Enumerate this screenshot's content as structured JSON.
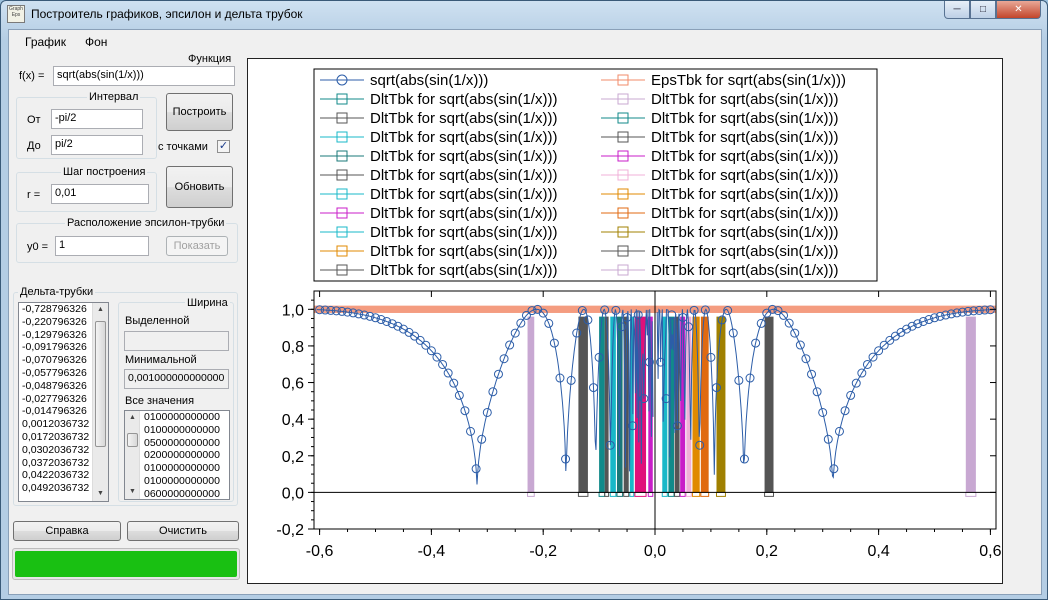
{
  "window": {
    "title": "Построитель графиков, эпсилон и дельта трубок",
    "icon_text": "Graph\nEps"
  },
  "menu": [
    "График",
    "Фон"
  ],
  "function": {
    "group_label": "Функция",
    "label": "f(x) =",
    "value": "sqrt(abs(sin(1/x)))"
  },
  "interval": {
    "group_label": "Интервал",
    "from_label": "От",
    "from_value": "-pi/2",
    "to_label": "До",
    "to_value": "pi/2"
  },
  "build_button": "Построить",
  "with_points": {
    "label": "с точками",
    "checked": true
  },
  "step": {
    "group_label": "Шаг построения",
    "label": "r =",
    "value": "0,01"
  },
  "update_button": "Обновить",
  "epsilon": {
    "group_label": "Расположение эпсилон-трубки",
    "label": "y0 =",
    "value": "1",
    "show_button": "Показать"
  },
  "delta": {
    "group_label": "Дельта-трубки",
    "items": [
      "-0,728796326",
      "-0,220796326",
      "-0,129796326",
      "-0,091796326",
      "-0,070796326",
      "-0,057796326",
      "-0,048796326",
      "-0,027796326",
      "-0,014796326",
      "0,0012036732",
      "0,0172036732",
      "0,0302036732",
      "0,0372036732",
      "0,0422036732",
      "0,0492036732"
    ]
  },
  "width": {
    "group_label": "Ширина",
    "selected_label": "Выделенной",
    "selected_value": "",
    "min_label": "Минимальной",
    "min_value": "0,001000000000000",
    "all_label": "Все значения",
    "all_values": [
      "0100000000000",
      "0100000000000",
      "0500000000000",
      "0200000000000",
      "0100000000000",
      "0100000000000",
      "0600000000000"
    ]
  },
  "help_button": "Справка",
  "clear_button": "Очистить",
  "progress": {
    "value_percent": 100,
    "color": "#19c012"
  },
  "chart_data": {
    "type": "line",
    "title": "",
    "xlabel": "",
    "ylabel": "",
    "xlim": [
      -0.61,
      0.61
    ],
    "ylim": [
      -0.2,
      1.1
    ],
    "xticks": [
      "-0,6",
      "-0,4",
      "-0,2",
      "0,0",
      "0,2",
      "0,4",
      "0,6"
    ],
    "yticks": [
      "-0,2",
      "0,0",
      "0,2",
      "0,4",
      "0,6",
      "0,8",
      "1,0"
    ],
    "legend_position": "top",
    "legend_left": [
      {
        "name": "sqrt(abs(sin(1/x)))",
        "color": "#2c5da8",
        "marker": "circle"
      },
      {
        "name": "DltTbk for sqrt(abs(sin(1/x)))",
        "color": "#118a8a",
        "marker": "square"
      },
      {
        "name": "DltTbk for sqrt(abs(sin(1/x)))",
        "color": "#555555",
        "marker": "square"
      },
      {
        "name": "DltTbk for sqrt(abs(sin(1/x)))",
        "color": "#19b8c8",
        "marker": "square"
      },
      {
        "name": "DltTbk for sqrt(abs(sin(1/x)))",
        "color": "#1a7878",
        "marker": "square"
      },
      {
        "name": "DltTbk for sqrt(abs(sin(1/x)))",
        "color": "#555555",
        "marker": "square"
      },
      {
        "name": "DltTbk for sqrt(abs(sin(1/x)))",
        "color": "#19b8c8",
        "marker": "square"
      },
      {
        "name": "DltTbk for sqrt(abs(sin(1/x)))",
        "color": "#c81ec8",
        "marker": "square"
      },
      {
        "name": "DltTbk for sqrt(abs(sin(1/x)))",
        "color": "#19b8c8",
        "marker": "square"
      },
      {
        "name": "DltTbk for sqrt(abs(sin(1/x)))",
        "color": "#e08a00",
        "marker": "square"
      },
      {
        "name": "DltTbk for sqrt(abs(sin(1/x)))",
        "color": "#555555",
        "marker": "square"
      }
    ],
    "legend_right": [
      {
        "name": "EpsTbk for sqrt(abs(sin(1/x)))",
        "color": "#f28b6a",
        "marker": "square"
      },
      {
        "name": "DltTbk for sqrt(abs(sin(1/x)))",
        "color": "#c8a8d2",
        "marker": "square"
      },
      {
        "name": "DltTbk for sqrt(abs(sin(1/x)))",
        "color": "#118a8a",
        "marker": "square"
      },
      {
        "name": "DltTbk for sqrt(abs(sin(1/x)))",
        "color": "#555555",
        "marker": "square"
      },
      {
        "name": "DltTbk for sqrt(abs(sin(1/x)))",
        "color": "#c81ec8",
        "marker": "square"
      },
      {
        "name": "DltTbk for sqrt(abs(sin(1/x)))",
        "color": "#f0b0d8",
        "marker": "square"
      },
      {
        "name": "DltTbk for sqrt(abs(sin(1/x)))",
        "color": "#e08a00",
        "marker": "square"
      },
      {
        "name": "DltTbk for sqrt(abs(sin(1/x)))",
        "color": "#e06a10",
        "marker": "square"
      },
      {
        "name": "DltTbk for sqrt(abs(sin(1/x)))",
        "color": "#a08000",
        "marker": "square"
      },
      {
        "name": "DltTbk for sqrt(abs(sin(1/x)))",
        "color": "#555555",
        "marker": "square"
      },
      {
        "name": "DltTbk for sqrt(abs(sin(1/x)))",
        "color": "#c8a8d2",
        "marker": "square"
      }
    ],
    "epsilon_band": {
      "y0": 0.98,
      "y1": 1.02,
      "color": "#f28b6a"
    },
    "delta_bars": [
      {
        "x0": -0.228,
        "x1": -0.216,
        "top": 0.96,
        "color": "#c8a8d2"
      },
      {
        "x0": -0.137,
        "x1": -0.12,
        "top": 0.96,
        "color": "#555555"
      },
      {
        "x0": -0.1,
        "x1": -0.09,
        "top": 0.96,
        "color": "#118a8a"
      },
      {
        "x0": -0.09,
        "x1": -0.083,
        "top": 0.96,
        "color": "#555555"
      },
      {
        "x0": -0.08,
        "x1": -0.07,
        "top": 0.96,
        "color": "#19b8c8"
      },
      {
        "x0": -0.068,
        "x1": -0.058,
        "top": 0.96,
        "color": "#1a7878"
      },
      {
        "x0": -0.056,
        "x1": -0.047,
        "top": 0.96,
        "color": "#555555"
      },
      {
        "x0": -0.045,
        "x1": -0.038,
        "top": 0.96,
        "color": "#19b8c8"
      },
      {
        "x0": -0.036,
        "x1": -0.016,
        "top": 0.96,
        "color": "#e0107a"
      },
      {
        "x0": -0.012,
        "x1": -0.004,
        "top": 0.96,
        "color": "#c81ec8"
      },
      {
        "x0": 0.013,
        "x1": 0.022,
        "top": 0.96,
        "color": "#19b8c8"
      },
      {
        "x0": 0.024,
        "x1": 0.034,
        "top": 0.96,
        "color": "#118a8a"
      },
      {
        "x0": 0.035,
        "x1": 0.044,
        "top": 0.96,
        "color": "#555555"
      },
      {
        "x0": 0.045,
        "x1": 0.054,
        "top": 0.96,
        "color": "#c81ec8"
      },
      {
        "x0": 0.056,
        "x1": 0.065,
        "top": 0.96,
        "color": "#f0b0d8"
      },
      {
        "x0": 0.067,
        "x1": 0.08,
        "top": 0.96,
        "color": "#e08a00"
      },
      {
        "x0": 0.082,
        "x1": 0.096,
        "top": 0.96,
        "color": "#e06a10"
      },
      {
        "x0": 0.11,
        "x1": 0.126,
        "top": 0.96,
        "color": "#a08000"
      },
      {
        "x0": 0.196,
        "x1": 0.212,
        "top": 0.96,
        "color": "#555555"
      },
      {
        "x0": 0.556,
        "x1": 0.574,
        "top": 0.96,
        "color": "#c8a8d2"
      }
    ]
  }
}
